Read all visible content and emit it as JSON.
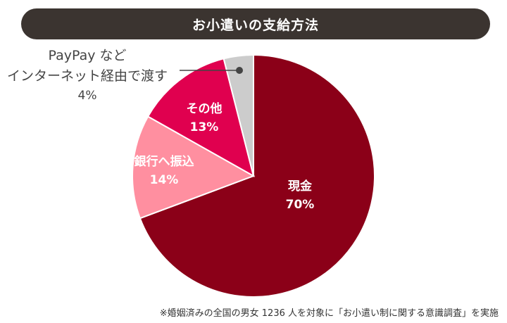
{
  "chart_data": {
    "type": "pie",
    "title": "お小遣いの支給方法",
    "unit": "%",
    "slices": [
      {
        "label": "現金",
        "value": 70,
        "color": "#8b0018",
        "label_color": "#ffffff"
      },
      {
        "label": "銀行へ振込",
        "value": 14,
        "color": "#ff8fa0",
        "label_color": "#ffffff"
      },
      {
        "label": "その他",
        "value": 13,
        "color": "#e0004f",
        "label_color": "#ffffff"
      },
      {
        "label": "PayPay など|インターネット経由で渡す",
        "value": 4,
        "color": "#cccccc",
        "label_color": "#444444"
      }
    ]
  },
  "footnote": "※婚姻済みの全国の男女 1236 人を対象に「お小遣い制に関する意識調査」を実施"
}
